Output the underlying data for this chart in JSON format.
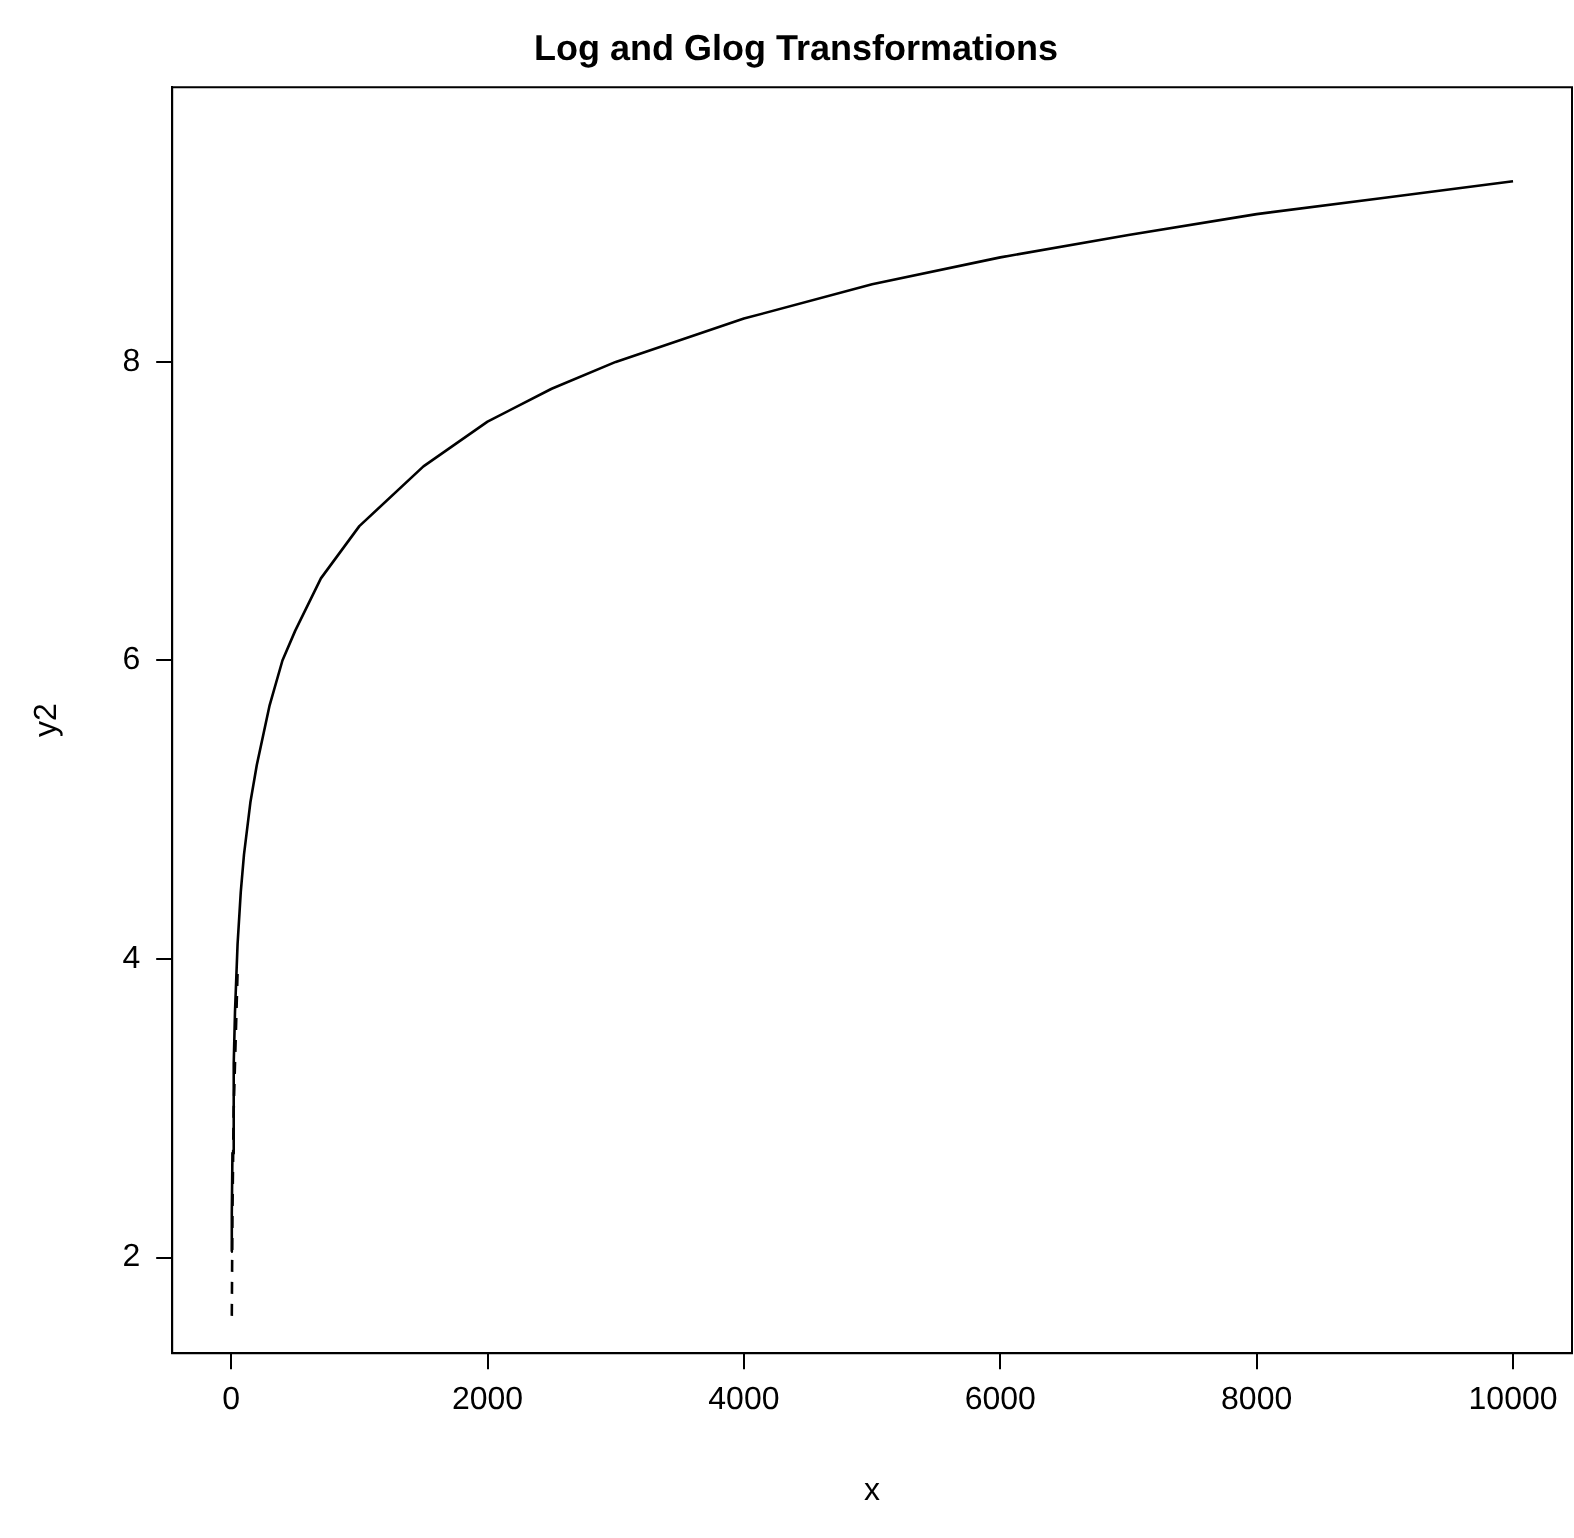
{
  "chart_data": {
    "type": "line",
    "title": "Log and Glog Transformations",
    "xlabel": "x",
    "ylabel": "y2",
    "xlim": [
      -460,
      10460
    ],
    "ylim": [
      1.36,
      9.84
    ],
    "xticks": [
      0,
      2000,
      4000,
      6000,
      8000,
      10000
    ],
    "yticks": [
      2,
      4,
      6,
      8
    ],
    "grid": false,
    "legend": false,
    "marker": "none",
    "series": [
      {
        "color": "#000000",
        "line_style": "solid",
        "x": [
          0,
          5,
          10,
          20,
          30,
          50,
          75,
          100,
          150,
          200,
          300,
          400,
          500,
          700,
          1000,
          1500,
          2000,
          2500,
          3000,
          4000,
          5000,
          6000,
          7000,
          8000,
          9000,
          10000
        ],
        "values": [
          2.04,
          2.3,
          2.7,
          3.3,
          3.65,
          4.1,
          4.45,
          4.7,
          5.05,
          5.3,
          5.7,
          6.0,
          6.2,
          6.55,
          6.9,
          7.3,
          7.6,
          7.82,
          8.0,
          8.29,
          8.52,
          8.7,
          8.85,
          8.99,
          9.1,
          9.21
        ]
      },
      {
        "color": "#000000",
        "line_style": "dashed",
        "x": [
          5,
          10,
          20,
          50
        ],
        "values": [
          1.61,
          2.3,
          3.0,
          3.91
        ]
      }
    ]
  }
}
